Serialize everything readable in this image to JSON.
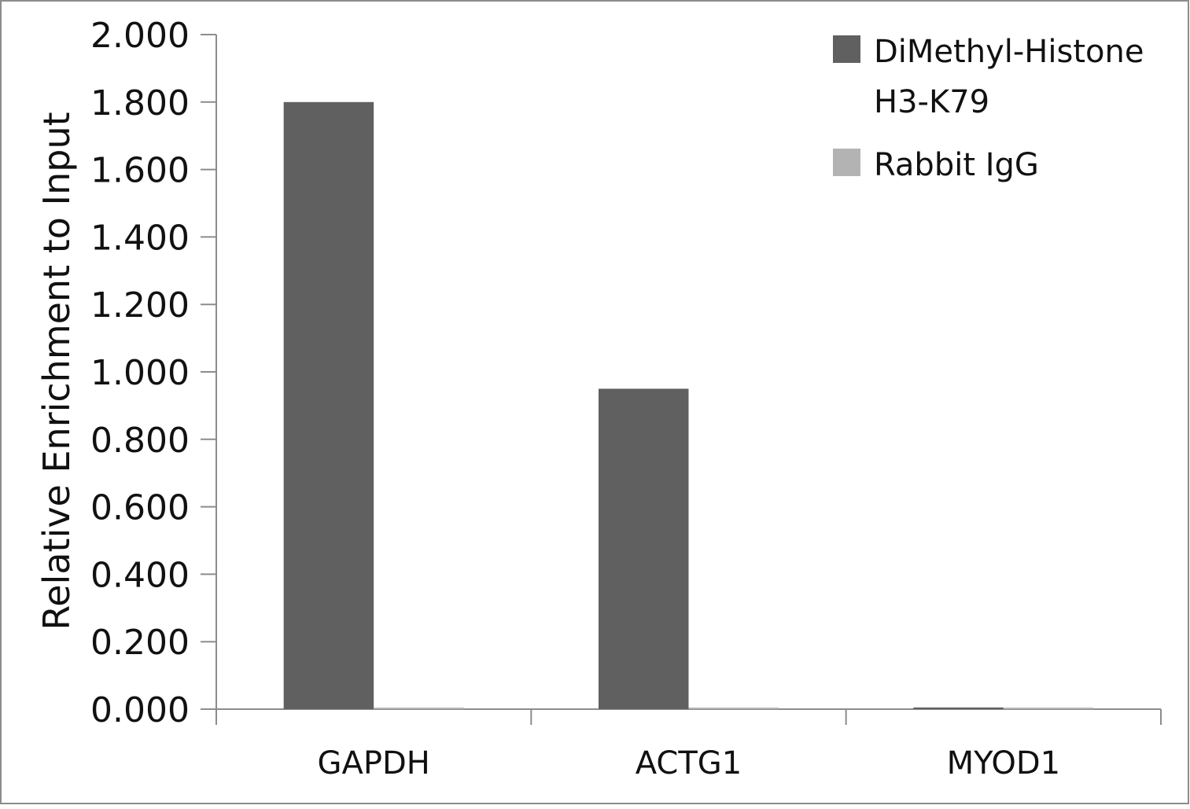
{
  "chart_data": {
    "type": "bar",
    "title": "",
    "xlabel": "",
    "ylabel": "Relative Enrichment to Input",
    "categories": [
      "GAPDH",
      "ACTG1",
      "MYOD1"
    ],
    "series": [
      {
        "name": "DiMethyl-Histone H3-K79",
        "name_lines": [
          "DiMethyl-Histone",
          "H3-K79"
        ],
        "color": "#606060",
        "values": [
          1.8,
          0.95,
          0.005
        ]
      },
      {
        "name": "Rabbit IgG",
        "name_lines": [
          "Rabbit IgG"
        ],
        "color": "#b3b3b3",
        "values": [
          0.003,
          0.003,
          0.003
        ]
      }
    ],
    "ylim": [
      0,
      2.0
    ],
    "yticks": [
      0.0,
      0.2,
      0.4,
      0.6,
      0.8,
      1.0,
      1.2,
      1.4,
      1.6,
      1.8,
      2.0
    ],
    "ytick_decimals": 3,
    "grid": false,
    "legend": "top-right",
    "colors": {
      "axis": "#8c8c8c",
      "border": "#8c8c8c",
      "text": "#111111"
    }
  }
}
